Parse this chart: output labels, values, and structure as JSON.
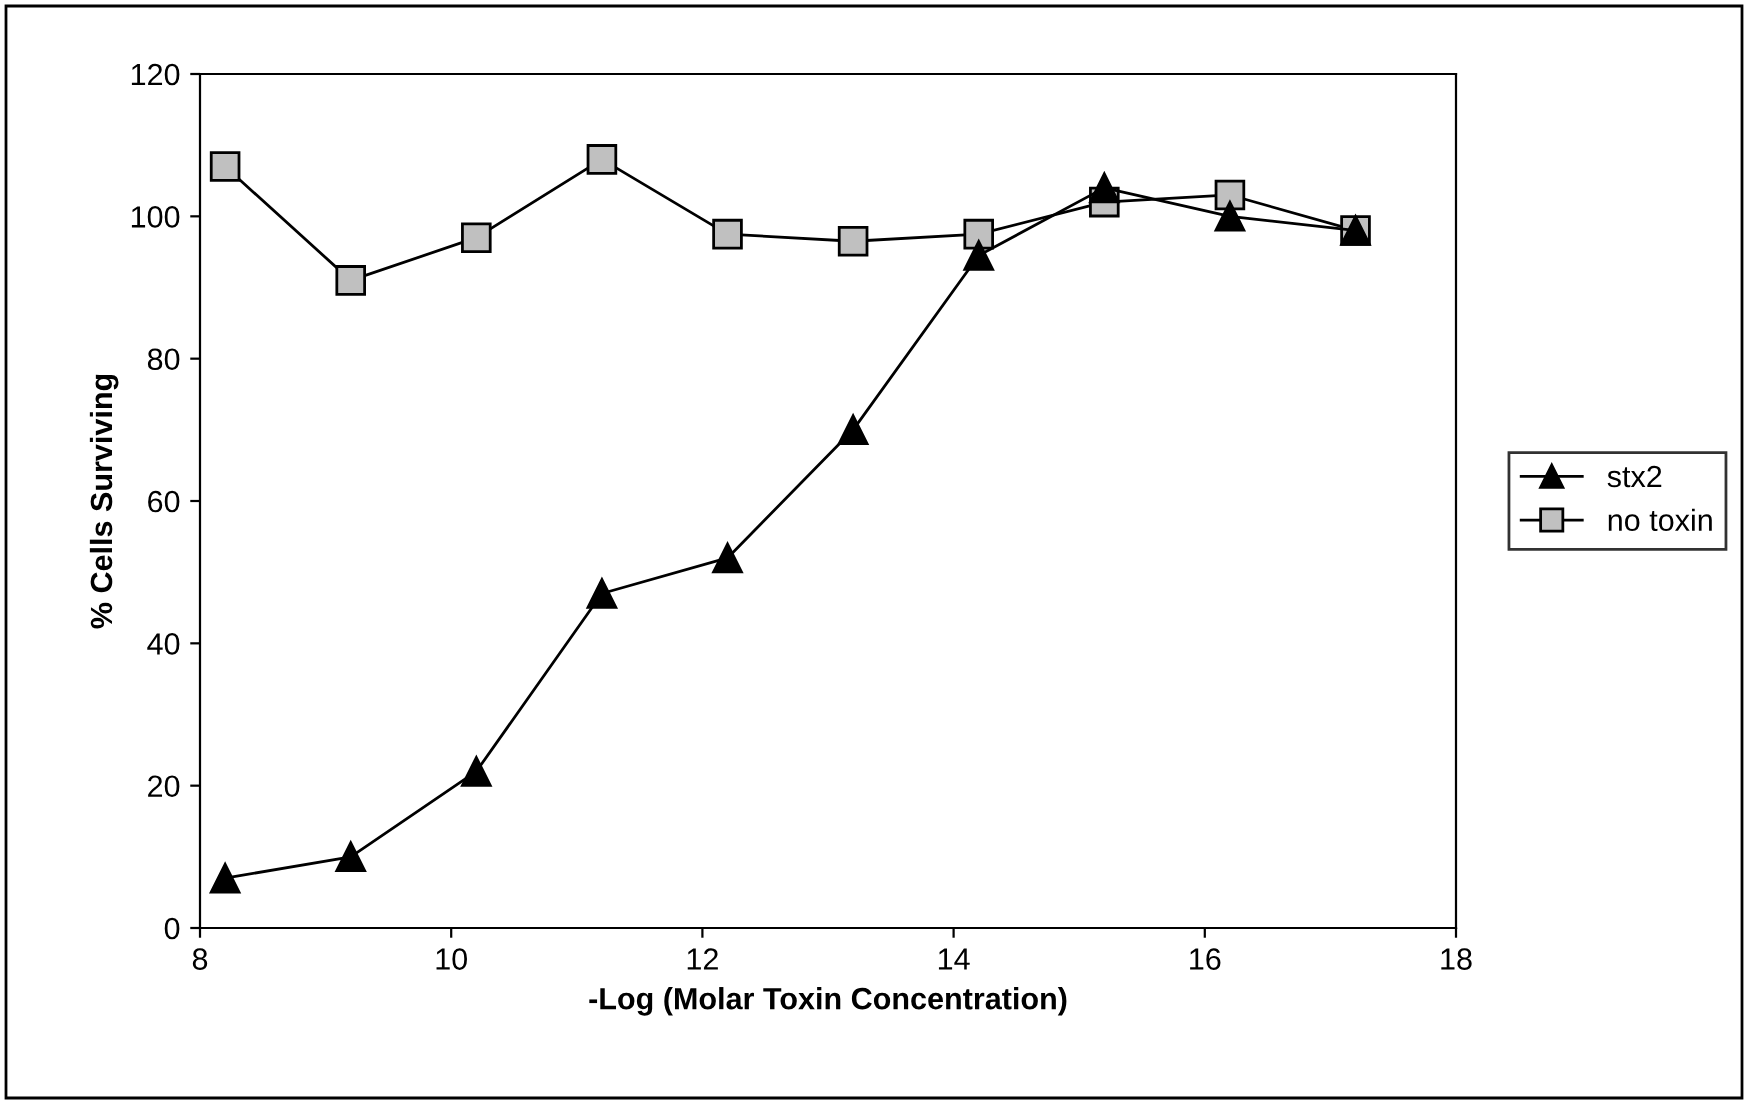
{
  "chart_data": {
    "type": "line",
    "xlabel": "-Log (Molar Toxin Concentration)",
    "ylabel": "% Cells Surviving",
    "xlim": [
      8,
      18
    ],
    "xticks": [
      8,
      10,
      12,
      14,
      16,
      18
    ],
    "ylim": [
      0,
      120
    ],
    "yticks": [
      0,
      20,
      40,
      60,
      80,
      100,
      120
    ],
    "grid": false,
    "legend": "right",
    "line_style": "solid",
    "series": [
      {
        "name": "stx2",
        "color": "#000000",
        "marker": "triangle",
        "x": [
          8.2,
          9.2,
          10.2,
          11.2,
          12.2,
          13.2,
          14.2,
          15.2,
          16.2,
          17.2
        ],
        "values": [
          7,
          10,
          22,
          47,
          52,
          70,
          94.5,
          104,
          100,
          98
        ]
      },
      {
        "name": "no toxin",
        "color": "#000000",
        "marker": "square",
        "x": [
          8.2,
          9.2,
          10.2,
          11.2,
          12.2,
          13.2,
          14.2,
          15.2,
          16.2,
          17.2
        ],
        "values": [
          107,
          91,
          97,
          108,
          97.5,
          96.5,
          97.5,
          102,
          103,
          98
        ]
      }
    ]
  }
}
